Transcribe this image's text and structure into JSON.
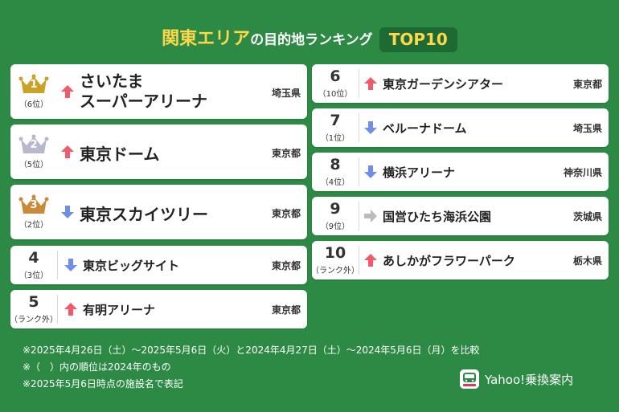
{
  "title": {
    "highlight": "関東エリア",
    "rest": "の目的地ランキング",
    "badge": "TOP10"
  },
  "ranking": [
    {
      "rank": "1",
      "prev": "（6位）",
      "name_line1": "さいたま",
      "name_line2": "スーパーアリーナ",
      "trend": "up",
      "pref": "埼玉県",
      "crown": "gold"
    },
    {
      "rank": "2",
      "prev": "（5位）",
      "name": "東京ドーム",
      "trend": "up",
      "pref": "東京都",
      "crown": "silver"
    },
    {
      "rank": "3",
      "prev": "（2位）",
      "name": "東京スカイツリー",
      "trend": "down",
      "pref": "東京都",
      "crown": "bronze"
    },
    {
      "rank": "4",
      "prev": "（3位）",
      "name": "東京ビッグサイト",
      "trend": "down",
      "pref": "東京都"
    },
    {
      "rank": "5",
      "prev": "（ランク外）",
      "name": "有明アリーナ",
      "trend": "up",
      "pref": "東京都"
    },
    {
      "rank": "6",
      "prev": "（10位）",
      "name": "東京ガーデンシアター",
      "trend": "up",
      "pref": "東京都"
    },
    {
      "rank": "7",
      "prev": "（1位）",
      "name": "ベルーナドーム",
      "trend": "down",
      "pref": "埼玉県"
    },
    {
      "rank": "8",
      "prev": "（4位）",
      "name": "横浜アリーナ",
      "trend": "down",
      "pref": "神奈川県"
    },
    {
      "rank": "9",
      "prev": "（9位）",
      "name": "国営ひたち海浜公園",
      "trend": "same",
      "pref": "茨城県"
    },
    {
      "rank": "10",
      "prev": "（ランク外）",
      "name": "あしかがフラワーパーク",
      "trend": "up",
      "pref": "栃木県"
    }
  ],
  "notes": [
    "※2025年4月26日（土）〜2025年5月6日（火）と2024年4月27日（土）〜2024年5月6日（月）を比較",
    "※（　）内の順位は2024年のもの",
    "※2025年5月6日時点の施設名で表記"
  ],
  "brand": {
    "name": "Yahoo!乗換案内",
    "logo": "yahoo-transit-logo"
  },
  "colors": {
    "background": "#2d8a45",
    "title_highlight": "#ffd84a",
    "up": "#f05a6a",
    "down": "#6d8fe8",
    "same": "#bbbbbb",
    "gold": "#c9a227",
    "silver": "#b8b8cc",
    "bronze": "#c98a3a"
  }
}
